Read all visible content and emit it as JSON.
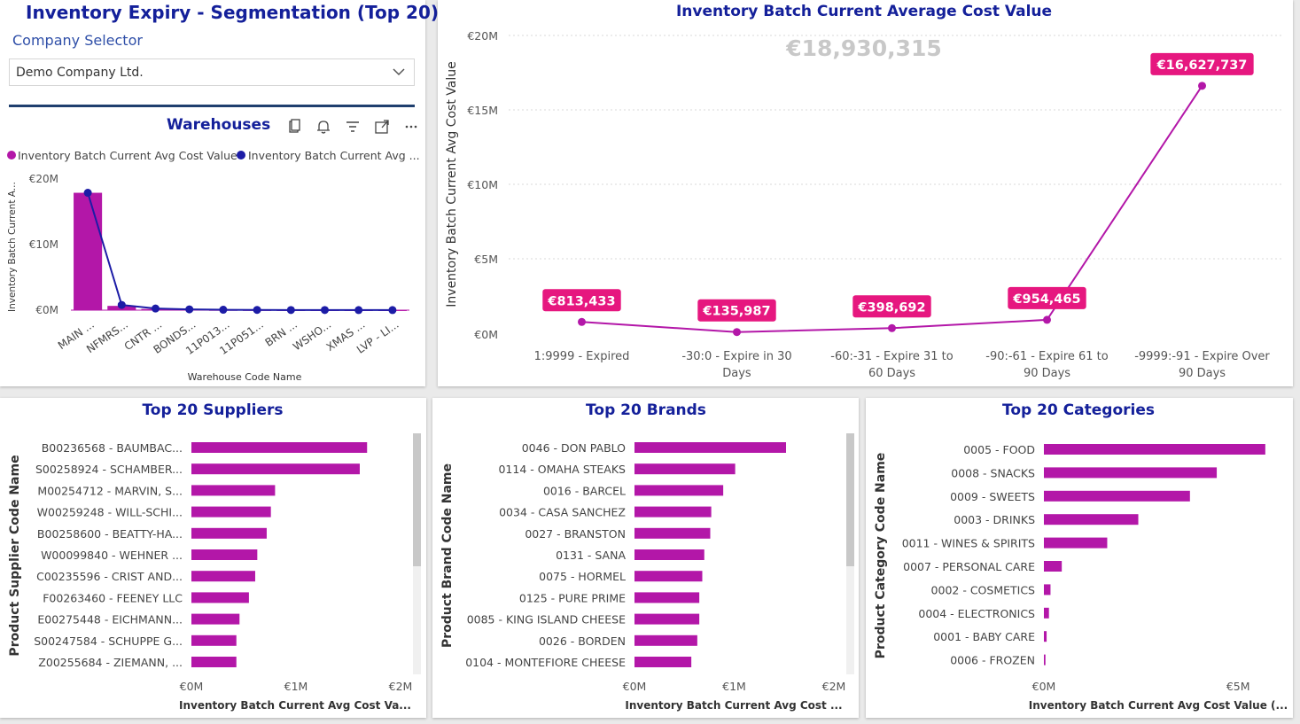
{
  "header": {
    "title": "Inventory Expiry - Segmentation (Top 20)",
    "company_selector_label": "Company Selector",
    "company_selected": "Demo Company Ltd."
  },
  "colors": {
    "magenta": "#b317a8",
    "navy": "#1c1ca6",
    "title": "#14209a",
    "label_bg": "#e6177f"
  },
  "chart_data": [
    {
      "id": "warehouses",
      "type": "bar",
      "title": "Warehouses",
      "legend": [
        "Inventory Batch Current Avg Cost Value",
        "Inventory Batch Current Avg ..."
      ],
      "xlabel": "Warehouse Code Name",
      "ylabel": "Inventory Batch Current A...",
      "yticks": [
        "€20M",
        "€10M",
        "€0M"
      ],
      "ylim": [
        0,
        20000000
      ],
      "categories": [
        "MAIN ...",
        "NFMRS...",
        "CNTR ...",
        "BONDS...",
        "11P013...",
        "11P051...",
        "BRN ...",
        "WSHO...",
        "XMAS ...",
        "LVP - LI..."
      ],
      "series": [
        {
          "type": "bar",
          "values": [
            17900000,
            650000,
            180000,
            90000,
            40000,
            25000,
            15000,
            10000,
            8000,
            5000
          ]
        },
        {
          "type": "line",
          "values": [
            17900000,
            800000,
            250000,
            120000,
            60000,
            40000,
            25000,
            20000,
            15000,
            10000
          ]
        }
      ]
    },
    {
      "id": "expiry",
      "type": "line",
      "title": "Inventory Batch Current Average Cost Value",
      "total_label": "€18,930,315",
      "ylabel": "Inventory Batch Current Avg Cost Value",
      "yticks": [
        "€20M",
        "€15M",
        "€10M",
        "€5M",
        "€0M"
      ],
      "ylim": [
        0,
        20000000
      ],
      "categories": [
        [
          "1:9999 - Expired",
          ""
        ],
        [
          "-30:0 - Expire in 30",
          "Days"
        ],
        [
          "-60:-31 - Expire 31 to",
          "60 Days"
        ],
        [
          "-90:-61 - Expire 61 to",
          "90 Days"
        ],
        [
          "-9999:-91 - Expire Over",
          "90 Days"
        ]
      ],
      "values": [
        813433,
        135987,
        398692,
        954465,
        16627737
      ],
      "value_labels": [
        "€813,433",
        "€135,987",
        "€398,692",
        "€954,465",
        "€16,627,737"
      ]
    },
    {
      "id": "suppliers",
      "type": "bar",
      "title": "Top 20 Suppliers",
      "ylabel": "Product Supplier Code Name",
      "xlabel": "Inventory Batch Current Avg Cost Va...",
      "xticks": [
        "€0M",
        "€1M",
        "€2M"
      ],
      "xlim": [
        0,
        2000000
      ],
      "categories": [
        "B00236568 - BAUMBAC...",
        "S00258924 - SCHAMBER...",
        "M00254712 - MARVIN, S...",
        "W00259248 - WILL-SCHI...",
        "B00258600 - BEATTY-HA...",
        "W00099840 - WEHNER ...",
        "C00235596 - CRIST AND...",
        "F00263460 - FEENEY LLC",
        "E00275448 - EICHMANN...",
        "S00247584 - SCHUPPE G...",
        "Z00255684 - ZIEMANN, ..."
      ],
      "values": [
        1680000,
        1610000,
        800000,
        760000,
        720000,
        630000,
        610000,
        550000,
        460000,
        430000,
        430000
      ]
    },
    {
      "id": "brands",
      "type": "bar",
      "title": "Top 20 Brands",
      "ylabel": "Product Brand Code Name",
      "xlabel": "Inventory Batch Current Avg Cost ...",
      "xticks": [
        "€0M",
        "€1M",
        "€2M"
      ],
      "xlim": [
        0,
        2000000
      ],
      "categories": [
        "0046 - DON PABLO",
        "0114 - OMAHA STEAKS",
        "0016 - BARCEL",
        "0034 - CASA SANCHEZ",
        "0027 - BRANSTON",
        "0131 - SANA",
        "0075 - HORMEL",
        "0125 - PURE PRIME",
        "0085 - KING ISLAND CHEESE",
        "0026 - BORDEN",
        "0104 - MONTEFIORE CHEESE"
      ],
      "values": [
        1520000,
        1010000,
        890000,
        770000,
        760000,
        700000,
        680000,
        650000,
        650000,
        630000,
        570000
      ]
    },
    {
      "id": "categories",
      "type": "bar",
      "title": "Top 20 Categories",
      "ylabel": "Product Category Code Name",
      "xlabel": "Inventory Batch Current Avg Cost Value (...",
      "xticks": [
        "€0M",
        "€5M"
      ],
      "xlim": [
        0,
        6000000
      ],
      "categories": [
        "0005 - FOOD",
        "0008 - SNACKS",
        "0009 - SWEETS",
        "0003 - DRINKS",
        "0011 - WINES & SPIRITS",
        "0007 - PERSONAL CARE",
        "0002 - COSMETICS",
        "0004 - ELECTRONICS",
        "0001 - BABY CARE",
        "0006 - FROZEN"
      ],
      "values": [
        5700000,
        4450000,
        3760000,
        2430000,
        1630000,
        460000,
        170000,
        130000,
        70000,
        40000
      ]
    }
  ]
}
